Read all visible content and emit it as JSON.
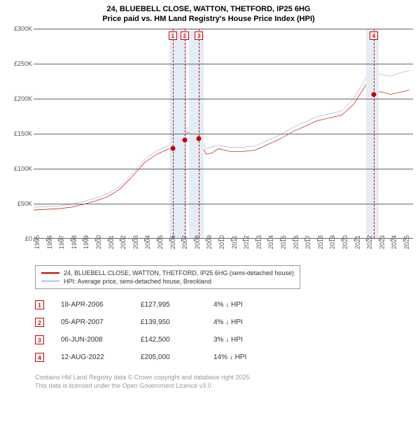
{
  "title_line1": "24, BLUEBELL CLOSE, WATTON, THETFORD, IP25 6HG",
  "title_line2": "Price paid vs. HM Land Registry's House Price Index (HPI)",
  "chart": {
    "type": "line",
    "background_color": "#ffffff",
    "grid_color": "#666666",
    "shade_color": "#e3edf6",
    "x_years": [
      "1995",
      "1996",
      "1997",
      "1998",
      "1999",
      "2000",
      "2001",
      "2002",
      "2003",
      "2004",
      "2005",
      "2006",
      "2007",
      "2008",
      "2009",
      "2010",
      "2011",
      "2012",
      "2013",
      "2014",
      "2015",
      "2016",
      "2017",
      "2018",
      "2019",
      "2020",
      "2021",
      "2022",
      "2023",
      "2024",
      "2025"
    ],
    "y_ticks": [
      "£0",
      "£50K",
      "£100K",
      "£150K",
      "£200K",
      "£250K",
      "£300K"
    ],
    "ylim": [
      0,
      300000
    ],
    "xlim": [
      1995,
      2025.8
    ],
    "tick_fontsize": 9,
    "tick_color": "#555555",
    "series": [
      {
        "name": "property",
        "color": "#cc0000",
        "width": 2,
        "points": [
          [
            1995,
            40
          ],
          [
            1996,
            41
          ],
          [
            1997,
            42
          ],
          [
            1998,
            44
          ],
          [
            1999,
            48
          ],
          [
            2000,
            53
          ],
          [
            2001,
            59
          ],
          [
            2002,
            70
          ],
          [
            2003,
            88
          ],
          [
            2004,
            108
          ],
          [
            2005,
            120
          ],
          [
            2006,
            128
          ],
          [
            2006.5,
            132
          ],
          [
            2007,
            140
          ],
          [
            2007.3,
            148
          ],
          [
            2007.6,
            152
          ],
          [
            2008,
            150
          ],
          [
            2008.4,
            144
          ],
          [
            2009,
            120
          ],
          [
            2009.5,
            122
          ],
          [
            2010,
            128
          ],
          [
            2011,
            124
          ],
          [
            2012,
            124
          ],
          [
            2013,
            126
          ],
          [
            2014,
            134
          ],
          [
            2015,
            142
          ],
          [
            2016,
            152
          ],
          [
            2017,
            160
          ],
          [
            2018,
            168
          ],
          [
            2019,
            172
          ],
          [
            2020,
            176
          ],
          [
            2021,
            192
          ],
          [
            2022,
            220
          ],
          [
            2022.6,
            228
          ],
          [
            2023,
            210
          ],
          [
            2023.5,
            208
          ],
          [
            2024,
            206
          ],
          [
            2025,
            210
          ],
          [
            2025.5,
            212
          ]
        ]
      },
      {
        "name": "hpi",
        "color": "#6a96c7",
        "width": 1.5,
        "points": [
          [
            1995,
            44
          ],
          [
            1996,
            45
          ],
          [
            1997,
            46
          ],
          [
            1998,
            48
          ],
          [
            1999,
            52
          ],
          [
            2000,
            57
          ],
          [
            2001,
            63
          ],
          [
            2002,
            74
          ],
          [
            2003,
            92
          ],
          [
            2004,
            112
          ],
          [
            2005,
            125
          ],
          [
            2006,
            133
          ],
          [
            2007,
            145
          ],
          [
            2007.6,
            158
          ],
          [
            2008,
            155
          ],
          [
            2008.5,
            148
          ],
          [
            2009,
            128
          ],
          [
            2010,
            133
          ],
          [
            2011,
            130
          ],
          [
            2012,
            130
          ],
          [
            2013,
            132
          ],
          [
            2014,
            140
          ],
          [
            2015,
            148
          ],
          [
            2016,
            158
          ],
          [
            2017,
            166
          ],
          [
            2018,
            174
          ],
          [
            2019,
            178
          ],
          [
            2020,
            182
          ],
          [
            2021,
            200
          ],
          [
            2022,
            230
          ],
          [
            2022.6,
            248
          ],
          [
            2023,
            235
          ],
          [
            2024,
            232
          ],
          [
            2025,
            238
          ],
          [
            2025.5,
            240
          ]
        ]
      }
    ],
    "shaded_ranges": [
      [
        2006,
        2007.4
      ],
      [
        2007.6,
        2008.8
      ],
      [
        2022,
        2023
      ]
    ],
    "event_markers": [
      {
        "n": "1",
        "x": 2006.3,
        "y": 128
      },
      {
        "n": "2",
        "x": 2007.26,
        "y": 140
      },
      {
        "n": "3",
        "x": 2008.43,
        "y": 142.5
      },
      {
        "n": "4",
        "x": 2022.62,
        "y": 205
      }
    ],
    "event_line_color": "#cc0000",
    "event_dot_color": "#cc0000"
  },
  "legend": {
    "items": [
      {
        "color": "#cc0000",
        "width": 2,
        "label": "24, BLUEBELL CLOSE, WATTON, THETFORD, IP25 6HG (semi-detached house)"
      },
      {
        "color": "#6a96c7",
        "width": 1.5,
        "label": "HPI: Average price, semi-detached house, Breckland"
      }
    ]
  },
  "events": [
    {
      "n": "1",
      "date": "18-APR-2006",
      "price": "£127,995",
      "diff": "4% ↓ HPI"
    },
    {
      "n": "2",
      "date": "05-APR-2007",
      "price": "£139,950",
      "diff": "4% ↓ HPI"
    },
    {
      "n": "3",
      "date": "06-JUN-2008",
      "price": "£142,500",
      "diff": "3% ↓ HPI"
    },
    {
      "n": "4",
      "date": "12-AUG-2022",
      "price": "£205,000",
      "diff": "14% ↓ HPI"
    }
  ],
  "footer_line1": "Contains HM Land Registry data © Crown copyright and database right 2025.",
  "footer_line2": "This data is licensed under the Open Government Licence v3.0."
}
